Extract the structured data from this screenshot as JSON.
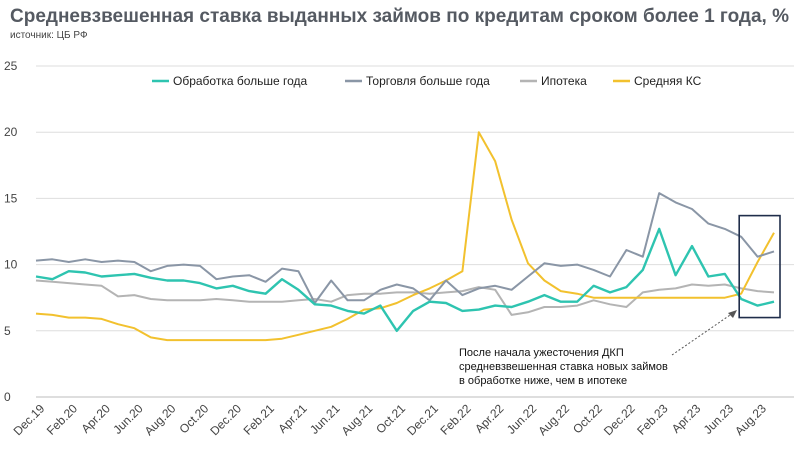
{
  "header": {
    "title": "Средневзвешенная ставка выданных займов по кредитам сроком более 1 года, %",
    "source": "источник: ЦБ РФ"
  },
  "chart_data": {
    "type": "line",
    "title": "Средневзвешенная ставка выданных займов по кредитам сроком более 1 года, %",
    "xlabel": "",
    "ylabel": "",
    "ylim": [
      0,
      25
    ],
    "yticks": [
      0,
      5,
      10,
      15,
      20,
      25
    ],
    "grid": "horizontal",
    "legend_position": "top",
    "x": [
      "Dec.19",
      "Jan.20",
      "Feb.20",
      "Mar.20",
      "Apr.20",
      "May.20",
      "Jun.20",
      "Jul.20",
      "Aug.20",
      "Sep.20",
      "Oct.20",
      "Nov.20",
      "Dec.20",
      "Jan.21",
      "Feb.21",
      "Mar.21",
      "Apr.21",
      "May.21",
      "Jun.21",
      "Jul.21",
      "Aug.21",
      "Sep.21",
      "Oct.21",
      "Nov.21",
      "Dec.21",
      "Jan.22",
      "Feb.22",
      "Mar.22",
      "Apr.22",
      "May.22",
      "Jun.22",
      "Jul.22",
      "Aug.22",
      "Sep.22",
      "Oct.22",
      "Nov.22",
      "Dec.22",
      "Jan.23",
      "Feb.23",
      "Mar.23",
      "Apr.23",
      "May.23",
      "Jun.23",
      "Jul.23",
      "Aug.23",
      "Sep.23"
    ],
    "x_tick_labels": [
      "Dec.19",
      "Feb.20",
      "Apr.20",
      "Jun.20",
      "Aug.20",
      "Oct.20",
      "Dec.20",
      "Feb.21",
      "Apr.21",
      "Jun.21",
      "Aug.21",
      "Oct.21",
      "Dec.21",
      "Feb.22",
      "Apr.22",
      "Jun.22",
      "Aug.22",
      "Oct.22",
      "Dec.22",
      "Feb.23",
      "Apr.23",
      "Jun.23",
      "Aug.23"
    ],
    "series": [
      {
        "name": "Обработка больше года",
        "color": "#2ec4b0",
        "values": [
          9.1,
          8.9,
          9.5,
          9.4,
          9.1,
          9.2,
          9.3,
          9.0,
          8.8,
          8.8,
          8.6,
          8.2,
          8.4,
          8.0,
          7.8,
          8.9,
          8.1,
          7.0,
          6.9,
          6.5,
          6.3,
          6.9,
          5.0,
          6.5,
          7.2,
          7.1,
          6.5,
          6.6,
          6.9,
          6.8,
          7.2,
          7.7,
          7.2,
          7.2,
          8.4,
          7.9,
          8.3,
          9.6,
          12.7,
          9.2,
          11.4,
          9.1,
          9.3,
          7.4,
          6.9,
          7.2
        ]
      },
      {
        "name": "Торговля больше года",
        "color": "#8a96a6",
        "values": [
          10.3,
          10.4,
          10.2,
          10.4,
          10.2,
          10.3,
          10.2,
          9.5,
          9.9,
          10.0,
          9.9,
          8.9,
          9.1,
          9.2,
          8.7,
          9.7,
          9.5,
          7.1,
          8.8,
          7.3,
          7.3,
          8.1,
          8.5,
          8.2,
          7.3,
          8.8,
          7.7,
          8.2,
          8.4,
          8.1,
          9.1,
          10.1,
          9.9,
          10.0,
          9.6,
          9.1,
          11.1,
          10.6,
          15.4,
          14.7,
          14.2,
          13.1,
          12.7,
          12.1,
          10.6,
          11.0
        ]
      },
      {
        "name": "Ипотека",
        "color": "#b4b4b4",
        "values": [
          8.8,
          8.7,
          8.6,
          8.5,
          8.4,
          7.6,
          7.7,
          7.4,
          7.3,
          7.3,
          7.3,
          7.4,
          7.3,
          7.2,
          7.2,
          7.2,
          7.3,
          7.4,
          7.2,
          7.7,
          7.8,
          7.8,
          7.9,
          7.9,
          7.8,
          7.9,
          8.0,
          8.3,
          8.1,
          6.2,
          6.4,
          6.8,
          6.8,
          6.9,
          7.3,
          7.0,
          6.8,
          7.9,
          8.1,
          8.2,
          8.5,
          8.4,
          8.5,
          8.2,
          8.0,
          7.9
        ]
      },
      {
        "name": "Средняя КС",
        "color": "#f2c12e",
        "values": [
          6.3,
          6.2,
          6.0,
          6.0,
          5.9,
          5.5,
          5.2,
          4.5,
          4.3,
          4.3,
          4.3,
          4.3,
          4.3,
          4.3,
          4.3,
          4.4,
          4.7,
          5.0,
          5.3,
          5.9,
          6.6,
          6.7,
          7.1,
          7.7,
          8.2,
          8.8,
          9.5,
          20.0,
          17.8,
          13.4,
          10.1,
          8.8,
          8.0,
          7.8,
          7.5,
          7.5,
          7.5,
          7.5,
          7.5,
          7.5,
          7.5,
          7.5,
          7.5,
          7.8,
          10.2,
          12.4
        ]
      }
    ],
    "annotation": {
      "lines": [
        "После начала ужесточения ДКП",
        "средневзвешенная ставка новых займов",
        "в обработке ниже, чем в ипотеке"
      ],
      "highlight_x_range": [
        "Jul.23",
        "Sep.23"
      ]
    }
  }
}
